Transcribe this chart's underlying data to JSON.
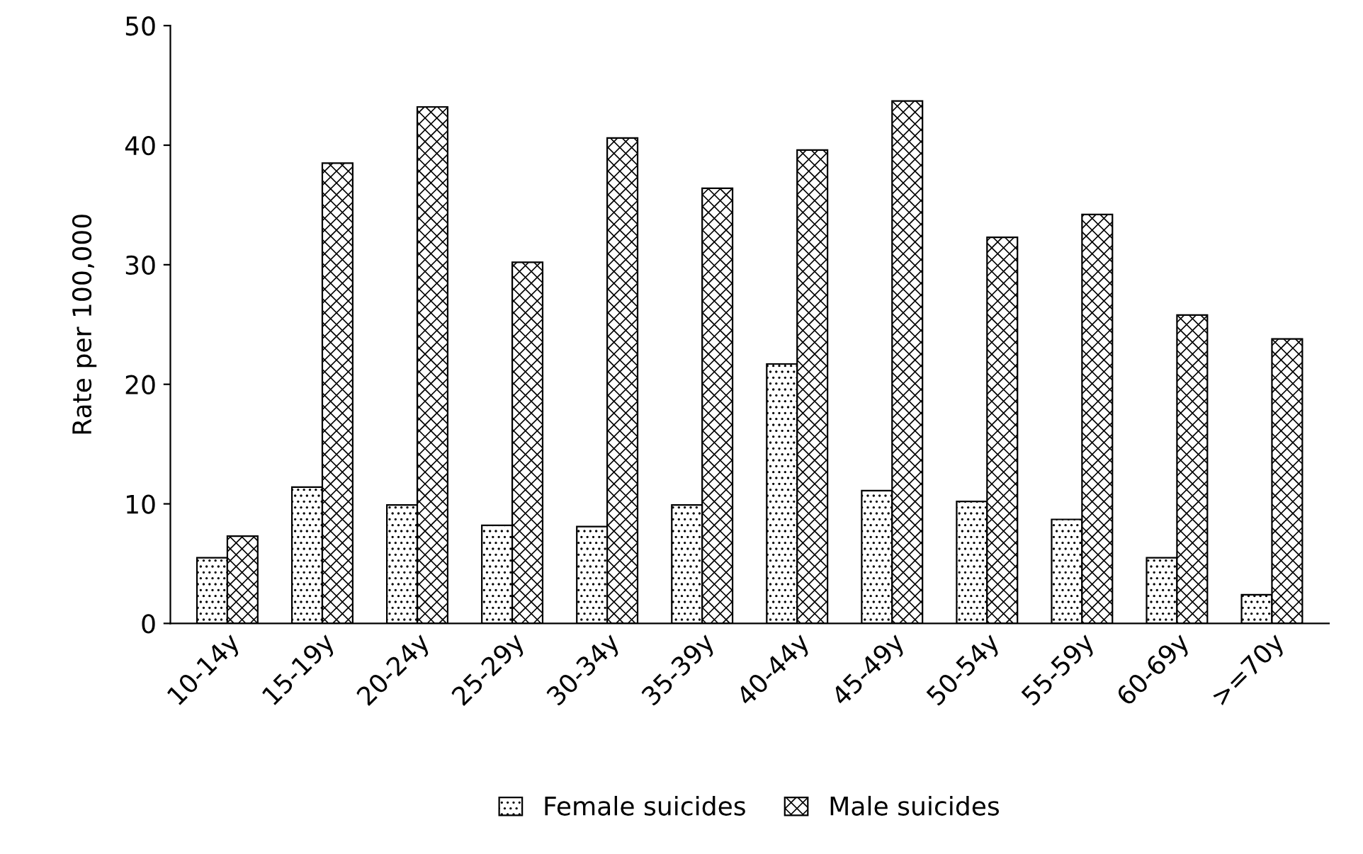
{
  "chart_data": {
    "type": "bar",
    "ylabel": "Rate per 100,000",
    "categories": [
      "10-14y",
      "15-19y",
      "20-24y",
      "25-29y",
      "30-34y",
      "35-39y",
      "40-44y",
      "45-49y",
      "50-54y",
      "55-59y",
      "60-69y",
      ">=70y"
    ],
    "series": [
      {
        "name": "Female suicides",
        "color": "#000000",
        "values": [
          5.5,
          11.4,
          9.9,
          8.2,
          8.1,
          9.9,
          21.7,
          11.1,
          10.2,
          8.7,
          5.5,
          2.4
        ]
      },
      {
        "name": "Male suicides",
        "color": "#000000",
        "values": [
          7.3,
          38.5,
          43.2,
          30.2,
          40.6,
          36.4,
          39.6,
          43.7,
          32.3,
          34.2,
          25.8,
          23.8
        ]
      }
    ],
    "ylim": [
      0,
      50
    ],
    "yticks": [
      0,
      10,
      20,
      30,
      40,
      50
    ],
    "grid": false,
    "legend": "bottom"
  }
}
